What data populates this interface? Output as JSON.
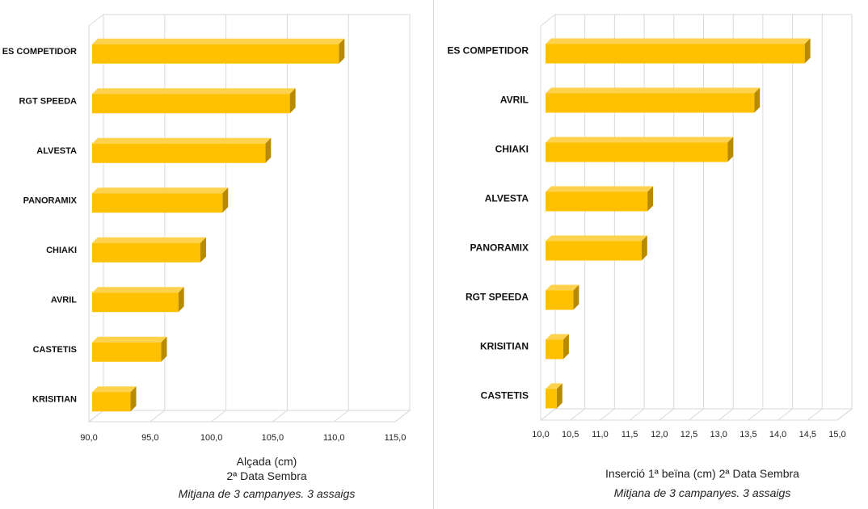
{
  "colors": {
    "bar_face": "#ffc000",
    "bar_top": "#ffd24d",
    "bar_side": "#b88a00",
    "grid": "#d9d9d9",
    "wall": "#ffffff"
  },
  "chart_data": [
    {
      "type": "bar",
      "orientation": "horizontal",
      "categories": [
        "ES COMPETIDOR",
        "RGT SPEEDA",
        "ALVESTA",
        "PANORAMIX",
        "CHIAKI",
        "AVRIL",
        "CASTETIS",
        "KRISITIAN"
      ],
      "values": [
        110.4,
        106.4,
        104.4,
        100.9,
        99.1,
        97.3,
        95.9,
        93.4
      ],
      "xlim": [
        90,
        115
      ],
      "xticks": [
        "90,0",
        "95,0",
        "100,0",
        "105,0",
        "110,0",
        "115,0"
      ],
      "xtick_values": [
        90,
        95,
        100,
        105,
        110,
        115
      ],
      "xlabel": "Alçada (cm)",
      "subtitle": "2ª Data Sembra",
      "note": "Mitjana de 3 campanyes. 3 assaigs",
      "grid": true,
      "legend": "none"
    },
    {
      "type": "bar",
      "orientation": "horizontal",
      "categories": [
        "ES COMPETIDOR",
        "AVRIL",
        "CHIAKI",
        "ALVESTA",
        "PANORAMIX",
        "RGT SPEEDA",
        "KRISITIAN",
        "CASTETIS"
      ],
      "values": [
        14.45,
        13.6,
        13.15,
        11.8,
        11.7,
        10.55,
        10.38,
        10.27
      ],
      "xlim": [
        10,
        15
      ],
      "xticks": [
        "10,0",
        "10,5",
        "11,0",
        "11,5",
        "12,0",
        "12,5",
        "13,0",
        "13,5",
        "14,0",
        "14,5",
        "15,0"
      ],
      "xtick_values": [
        10,
        10.5,
        11,
        11.5,
        12,
        12.5,
        13,
        13.5,
        14,
        14.5,
        15
      ],
      "xlabel": "Inserció 1ª beïna (cm) 2ª Data Sembra",
      "note": "Mitjana de 3 campanyes. 3 assaigs",
      "grid": true,
      "legend": "none"
    }
  ]
}
